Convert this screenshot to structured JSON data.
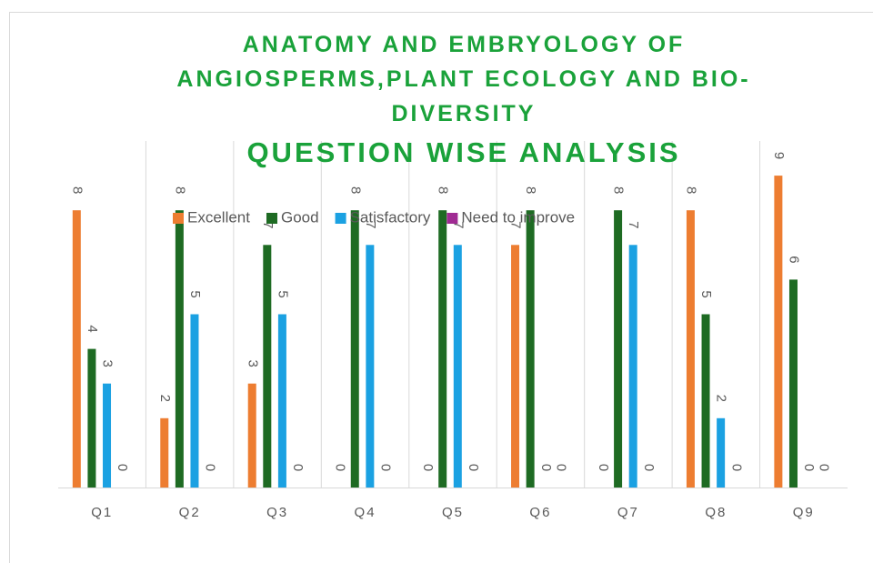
{
  "chart_data": {
    "type": "bar",
    "title": "ANATOMY AND EMBRYOLOGY OF ANGIOSPERMS,PLANT ECOLOGY AND BIO-DIVERSITY",
    "subtitle": "QUESTION WISE ANALYSIS",
    "categories": [
      "Q1",
      "Q2",
      "Q3",
      "Q4",
      "Q5",
      "Q6",
      "Q7",
      "Q8",
      "Q9"
    ],
    "series": [
      {
        "name": "Excellent",
        "color": "#ed7d31",
        "values": [
          8,
          2,
          3,
          0,
          0,
          7,
          0,
          8,
          9
        ]
      },
      {
        "name": "Good",
        "color": "#1e6b23",
        "values": [
          4,
          8,
          7,
          8,
          8,
          8,
          8,
          5,
          6
        ]
      },
      {
        "name": "Satisfactory",
        "color": "#1ba1e2",
        "values": [
          3,
          5,
          5,
          7,
          7,
          0,
          7,
          2,
          0
        ]
      },
      {
        "name": "Need to improve",
        "color": "#a02b93",
        "values": [
          0,
          0,
          0,
          0,
          0,
          0,
          0,
          0,
          0
        ]
      }
    ],
    "ylim": [
      0,
      10
    ],
    "legend": "top"
  }
}
